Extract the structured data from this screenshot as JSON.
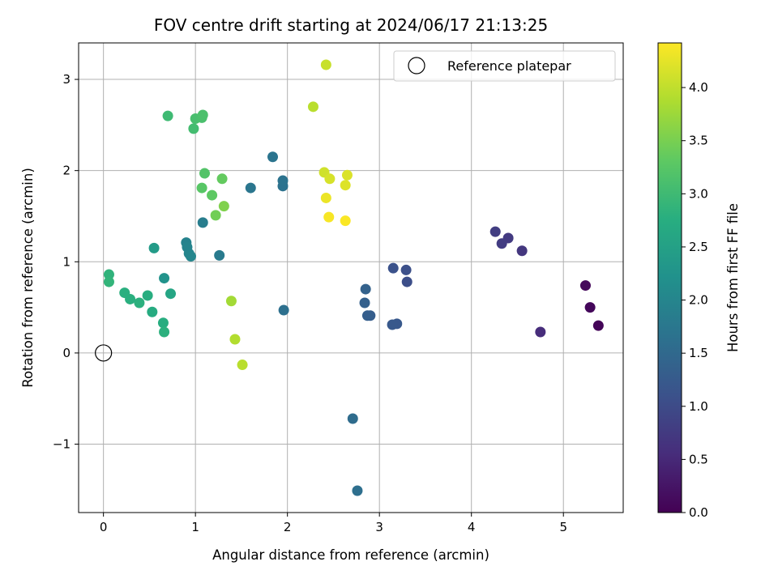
{
  "chart_data": {
    "type": "scatter",
    "title": "FOV centre drift starting at 2024/06/17 21:13:25",
    "xlabel": "Angular distance from reference (arcmin)",
    "ylabel": "Rotation from reference (arcmin)",
    "xlim": [
      -0.27,
      5.65
    ],
    "ylim": [
      -1.75,
      3.4
    ],
    "xticks": [
      0,
      1,
      2,
      3,
      4,
      5
    ],
    "yticks": [
      -1,
      0,
      1,
      2,
      3
    ],
    "xtick_labels": [
      "0",
      "1",
      "2",
      "3",
      "4",
      "5"
    ],
    "ytick_labels": [
      "−1",
      "0",
      "1",
      "2",
      "3"
    ],
    "grid": true,
    "colormap": "viridis",
    "colorbar": {
      "label": "Hours from first FF file",
      "range": [
        0,
        4.42
      ],
      "ticks": [
        0.0,
        0.5,
        1.0,
        1.5,
        2.0,
        2.5,
        3.0,
        3.5,
        4.0
      ],
      "tick_labels": [
        "0.0",
        "0.5",
        "1.0",
        "1.5",
        "2.0",
        "2.5",
        "3.0",
        "3.5",
        "4.0"
      ]
    },
    "legend": {
      "placement": "top-right",
      "entries": [
        "Reference platepar"
      ]
    },
    "reference_point": {
      "x": 0,
      "y": 0
    },
    "points": [
      {
        "x": 5.38,
        "y": 0.3,
        "c": 0.05
      },
      {
        "x": 5.29,
        "y": 0.5,
        "c": 0.08
      },
      {
        "x": 5.24,
        "y": 0.74,
        "c": 0.1
      },
      {
        "x": 4.75,
        "y": 0.23,
        "c": 0.55
      },
      {
        "x": 4.55,
        "y": 1.12,
        "c": 0.7
      },
      {
        "x": 4.4,
        "y": 1.26,
        "c": 0.75
      },
      {
        "x": 4.33,
        "y": 1.2,
        "c": 0.78
      },
      {
        "x": 4.26,
        "y": 1.33,
        "c": 0.8
      },
      {
        "x": 3.3,
        "y": 0.78,
        "c": 1.05
      },
      {
        "x": 3.29,
        "y": 0.91,
        "c": 1.08
      },
      {
        "x": 3.15,
        "y": 0.93,
        "c": 1.1
      },
      {
        "x": 3.19,
        "y": 0.32,
        "c": 1.2
      },
      {
        "x": 3.14,
        "y": 0.31,
        "c": 1.22
      },
      {
        "x": 2.9,
        "y": 0.41,
        "c": 1.3
      },
      {
        "x": 2.87,
        "y": 0.41,
        "c": 1.32
      },
      {
        "x": 2.84,
        "y": 0.55,
        "c": 1.35
      },
      {
        "x": 2.85,
        "y": 0.7,
        "c": 1.38
      },
      {
        "x": 2.71,
        "y": -0.72,
        "c": 1.55
      },
      {
        "x": 2.76,
        "y": -1.51,
        "c": 1.6
      },
      {
        "x": 1.96,
        "y": 0.47,
        "c": 1.62
      },
      {
        "x": 1.95,
        "y": 1.83,
        "c": 1.65
      },
      {
        "x": 1.95,
        "y": 1.89,
        "c": 1.67
      },
      {
        "x": 1.84,
        "y": 2.15,
        "c": 1.7
      },
      {
        "x": 1.6,
        "y": 1.81,
        "c": 1.72
      },
      {
        "x": 1.26,
        "y": 1.07,
        "c": 1.8
      },
      {
        "x": 1.08,
        "y": 1.43,
        "c": 1.85
      },
      {
        "x": 0.9,
        "y": 1.21,
        "c": 1.95
      },
      {
        "x": 0.91,
        "y": 1.16,
        "c": 1.97
      },
      {
        "x": 0.93,
        "y": 1.09,
        "c": 2.0
      },
      {
        "x": 0.95,
        "y": 1.06,
        "c": 2.02
      },
      {
        "x": 0.66,
        "y": 0.82,
        "c": 2.25
      },
      {
        "x": 0.55,
        "y": 1.15,
        "c": 2.4
      },
      {
        "x": 0.73,
        "y": 0.65,
        "c": 2.6
      },
      {
        "x": 0.65,
        "y": 0.33,
        "c": 2.75
      },
      {
        "x": 0.66,
        "y": 0.23,
        "c": 2.8
      },
      {
        "x": 0.53,
        "y": 0.45,
        "c": 2.7
      },
      {
        "x": 0.48,
        "y": 0.63,
        "c": 2.75
      },
      {
        "x": 0.39,
        "y": 0.55,
        "c": 2.8
      },
      {
        "x": 0.29,
        "y": 0.59,
        "c": 2.78
      },
      {
        "x": 0.23,
        "y": 0.66,
        "c": 2.78
      },
      {
        "x": 0.06,
        "y": 0.86,
        "c": 2.85
      },
      {
        "x": 0.06,
        "y": 0.78,
        "c": 2.88
      },
      {
        "x": 0.7,
        "y": 2.6,
        "c": 3.0
      },
      {
        "x": 0.98,
        "y": 2.46,
        "c": 3.05
      },
      {
        "x": 1.0,
        "y": 2.57,
        "c": 3.1
      },
      {
        "x": 1.07,
        "y": 2.58,
        "c": 3.12
      },
      {
        "x": 1.08,
        "y": 2.61,
        "c": 3.14
      },
      {
        "x": 1.1,
        "y": 1.97,
        "c": 3.2
      },
      {
        "x": 1.07,
        "y": 1.81,
        "c": 3.25
      },
      {
        "x": 1.18,
        "y": 1.73,
        "c": 3.3
      },
      {
        "x": 1.29,
        "y": 1.91,
        "c": 3.35
      },
      {
        "x": 1.22,
        "y": 1.51,
        "c": 3.45
      },
      {
        "x": 1.31,
        "y": 1.61,
        "c": 3.55
      },
      {
        "x": 1.39,
        "y": 0.57,
        "c": 3.8
      },
      {
        "x": 1.43,
        "y": 0.15,
        "c": 3.9
      },
      {
        "x": 1.51,
        "y": -0.13,
        "c": 3.95
      },
      {
        "x": 2.28,
        "y": 2.7,
        "c": 3.95
      },
      {
        "x": 2.42,
        "y": 3.16,
        "c": 4.05
      },
      {
        "x": 2.4,
        "y": 1.98,
        "c": 4.1
      },
      {
        "x": 2.46,
        "y": 1.91,
        "c": 4.15
      },
      {
        "x": 2.65,
        "y": 1.95,
        "c": 4.18
      },
      {
        "x": 2.63,
        "y": 1.84,
        "c": 4.2
      },
      {
        "x": 2.42,
        "y": 1.7,
        "c": 4.3
      },
      {
        "x": 2.45,
        "y": 1.49,
        "c": 4.38
      },
      {
        "x": 2.63,
        "y": 1.45,
        "c": 4.4
      }
    ]
  }
}
